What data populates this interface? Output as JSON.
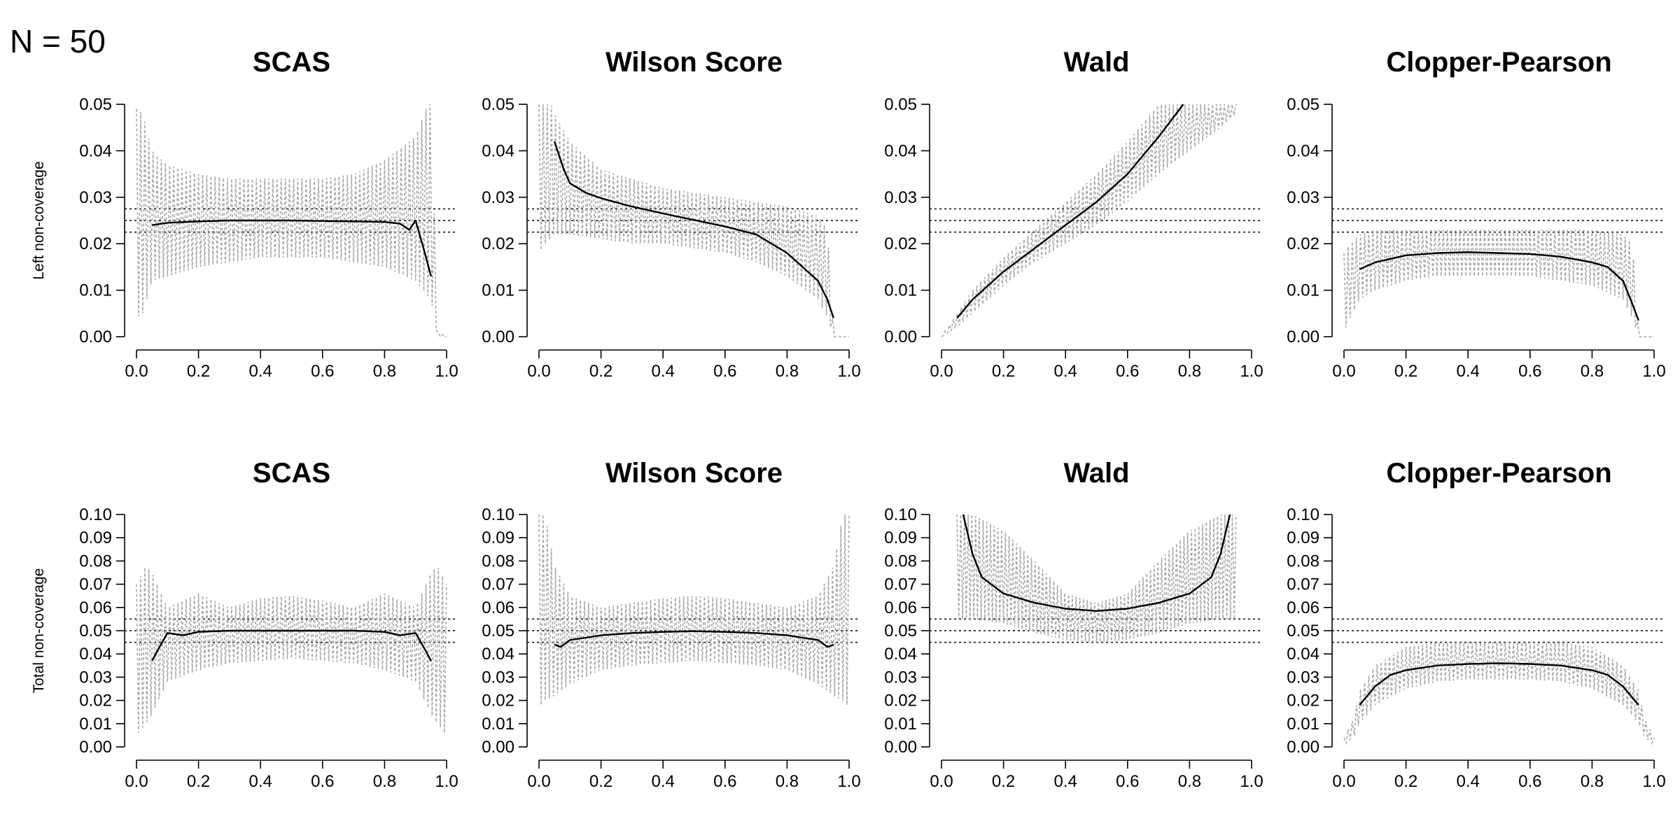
{
  "figure_label": "N = 50",
  "chart_data": [
    {
      "type": "line",
      "title": "SCAS",
      "ylabel": "Left non-coverage",
      "xlim": [
        0,
        1
      ],
      "ylim": [
        0,
        0.05
      ],
      "xticks": [
        "0.0",
        "0.2",
        "0.4",
        "0.6",
        "0.8",
        "1.0"
      ],
      "yticks": [
        "0.00",
        "0.01",
        "0.02",
        "0.03",
        "0.04",
        "0.05"
      ],
      "reference_lines": [
        0.0225,
        0.025,
        0.0275
      ],
      "series": [
        {
          "style": "solid-black",
          "x": [
            0.05,
            0.1,
            0.2,
            0.3,
            0.4,
            0.5,
            0.6,
            0.7,
            0.8,
            0.85,
            0.88,
            0.9,
            0.93,
            0.95
          ],
          "y": [
            0.024,
            0.0245,
            0.0248,
            0.025,
            0.025,
            0.025,
            0.0249,
            0.0248,
            0.0247,
            0.0243,
            0.023,
            0.025,
            0.018,
            0.013
          ]
        },
        {
          "style": "dotted-gray",
          "x": [
            0.0,
            0.02,
            0.05,
            0.1,
            0.2,
            0.3,
            0.4,
            0.5,
            0.6,
            0.7,
            0.8,
            0.9,
            0.95,
            0.97,
            1.0
          ],
          "upper": [
            0.049,
            0.048,
            0.04,
            0.037,
            0.035,
            0.034,
            0.034,
            0.034,
            0.034,
            0.035,
            0.038,
            0.043,
            0.052,
            0.001,
            0.0
          ],
          "lower": [
            0.004,
            0.005,
            0.012,
            0.013,
            0.015,
            0.016,
            0.017,
            0.017,
            0.017,
            0.016,
            0.015,
            0.012,
            0.008,
            0.0,
            0.0
          ]
        }
      ]
    },
    {
      "type": "line",
      "title": "Wilson Score",
      "ylabel": "",
      "xlim": [
        0,
        1
      ],
      "ylim": [
        0,
        0.05
      ],
      "xticks": [
        "0.0",
        "0.2",
        "0.4",
        "0.6",
        "0.8",
        "1.0"
      ],
      "yticks": [
        "0.00",
        "0.01",
        "0.02",
        "0.03",
        "0.04",
        "0.05"
      ],
      "reference_lines": [
        0.0225,
        0.025,
        0.0275
      ],
      "series": [
        {
          "style": "solid-black",
          "x": [
            0.05,
            0.08,
            0.1,
            0.15,
            0.2,
            0.3,
            0.4,
            0.5,
            0.6,
            0.7,
            0.8,
            0.85,
            0.9,
            0.93,
            0.95
          ],
          "y": [
            0.042,
            0.036,
            0.033,
            0.031,
            0.0298,
            0.028,
            0.0265,
            0.0251,
            0.0237,
            0.022,
            0.018,
            0.015,
            0.012,
            0.008,
            0.004
          ]
        },
        {
          "style": "dotted-gray",
          "x": [
            0.0,
            0.02,
            0.05,
            0.1,
            0.2,
            0.3,
            0.4,
            0.5,
            0.6,
            0.7,
            0.8,
            0.9,
            0.93,
            0.95,
            1.0
          ],
          "upper": [
            0.055,
            0.053,
            0.048,
            0.042,
            0.036,
            0.034,
            0.032,
            0.031,
            0.03,
            0.029,
            0.028,
            0.026,
            0.023,
            0.0,
            0.0
          ],
          "lower": [
            0.018,
            0.02,
            0.022,
            0.022,
            0.021,
            0.02,
            0.02,
            0.019,
            0.018,
            0.016,
            0.013,
            0.008,
            0.004,
            0.0,
            0.0
          ]
        }
      ]
    },
    {
      "type": "line",
      "title": "Wald",
      "ylabel": "",
      "xlim": [
        0,
        1
      ],
      "ylim": [
        0,
        0.05
      ],
      "xticks": [
        "0.0",
        "0.2",
        "0.4",
        "0.6",
        "0.8",
        "1.0"
      ],
      "yticks": [
        "0.00",
        "0.01",
        "0.02",
        "0.03",
        "0.04",
        "0.05"
      ],
      "reference_lines": [
        0.0225,
        0.025,
        0.0275
      ],
      "series": [
        {
          "style": "solid-black",
          "x": [
            0.05,
            0.1,
            0.2,
            0.3,
            0.4,
            0.5,
            0.6,
            0.7,
            0.78
          ],
          "y": [
            0.004,
            0.008,
            0.014,
            0.019,
            0.024,
            0.029,
            0.035,
            0.043,
            0.052
          ]
        },
        {
          "style": "dotted-gray",
          "x": [
            0.0,
            0.05,
            0.1,
            0.2,
            0.3,
            0.4,
            0.5,
            0.6,
            0.7,
            0.8,
            0.9,
            0.95
          ],
          "upper": [
            0.0,
            0.005,
            0.01,
            0.017,
            0.023,
            0.029,
            0.035,
            0.042,
            0.05,
            0.052,
            0.052,
            0.052
          ],
          "lower": [
            0.0,
            0.002,
            0.005,
            0.011,
            0.016,
            0.02,
            0.024,
            0.029,
            0.035,
            0.04,
            0.045,
            0.048
          ]
        }
      ]
    },
    {
      "type": "line",
      "title": "Clopper-Pearson",
      "ylabel": "",
      "xlim": [
        0,
        1
      ],
      "ylim": [
        0,
        0.05
      ],
      "xticks": [
        "0.0",
        "0.2",
        "0.4",
        "0.6",
        "0.8",
        "1.0"
      ],
      "yticks": [
        "0.00",
        "0.01",
        "0.02",
        "0.03",
        "0.04",
        "0.05"
      ],
      "reference_lines": [
        0.0225,
        0.025,
        0.0275
      ],
      "series": [
        {
          "style": "solid-black",
          "x": [
            0.05,
            0.1,
            0.2,
            0.3,
            0.4,
            0.5,
            0.6,
            0.7,
            0.8,
            0.85,
            0.9,
            0.93,
            0.95
          ],
          "y": [
            0.0145,
            0.016,
            0.0175,
            0.018,
            0.0182,
            0.018,
            0.0178,
            0.0172,
            0.016,
            0.015,
            0.012,
            0.007,
            0.0035
          ]
        },
        {
          "style": "dotted-gray",
          "x": [
            0.0,
            0.02,
            0.05,
            0.1,
            0.2,
            0.3,
            0.4,
            0.5,
            0.6,
            0.7,
            0.8,
            0.9,
            0.93,
            0.95,
            1.0
          ],
          "upper": [
            0.018,
            0.02,
            0.022,
            0.023,
            0.023,
            0.023,
            0.023,
            0.023,
            0.023,
            0.023,
            0.023,
            0.022,
            0.02,
            0.0,
            0.0
          ],
          "lower": [
            0.001,
            0.004,
            0.008,
            0.01,
            0.012,
            0.013,
            0.013,
            0.013,
            0.013,
            0.012,
            0.011,
            0.008,
            0.004,
            0.0,
            0.0
          ]
        }
      ]
    },
    {
      "type": "line",
      "title": "SCAS",
      "ylabel": "Total non-coverage",
      "xlim": [
        0,
        1
      ],
      "ylim": [
        0,
        0.1
      ],
      "xticks": [
        "0.0",
        "0.2",
        "0.4",
        "0.6",
        "0.8",
        "1.0"
      ],
      "yticks": [
        "0.00",
        "0.01",
        "0.02",
        "0.03",
        "0.04",
        "0.05",
        "0.06",
        "0.07",
        "0.08",
        "0.09",
        "0.10"
      ],
      "reference_lines": [
        0.045,
        0.05,
        0.055
      ],
      "series": [
        {
          "style": "solid-black",
          "x": [
            0.05,
            0.07,
            0.1,
            0.15,
            0.2,
            0.3,
            0.4,
            0.5,
            0.6,
            0.7,
            0.8,
            0.85,
            0.9,
            0.93,
            0.95
          ],
          "y": [
            0.037,
            0.042,
            0.049,
            0.048,
            0.0495,
            0.05,
            0.05,
            0.05,
            0.05,
            0.05,
            0.0495,
            0.048,
            0.049,
            0.042,
            0.037
          ]
        },
        {
          "style": "dotted-gray",
          "x": [
            0.0,
            0.03,
            0.05,
            0.1,
            0.2,
            0.3,
            0.4,
            0.5,
            0.6,
            0.7,
            0.8,
            0.9,
            0.95,
            0.97,
            1.0
          ],
          "upper": [
            0.07,
            0.078,
            0.075,
            0.06,
            0.066,
            0.06,
            0.064,
            0.065,
            0.063,
            0.06,
            0.066,
            0.06,
            0.075,
            0.078,
            0.07
          ],
          "lower": [
            0.005,
            0.01,
            0.014,
            0.028,
            0.033,
            0.036,
            0.037,
            0.038,
            0.037,
            0.036,
            0.033,
            0.028,
            0.014,
            0.01,
            0.005
          ]
        }
      ]
    },
    {
      "type": "line",
      "title": "Wilson Score",
      "ylabel": "",
      "xlim": [
        0,
        1
      ],
      "ylim": [
        0,
        0.1
      ],
      "xticks": [
        "0.0",
        "0.2",
        "0.4",
        "0.6",
        "0.8",
        "1.0"
      ],
      "yticks": [
        "0.00",
        "0.01",
        "0.02",
        "0.03",
        "0.04",
        "0.05",
        "0.06",
        "0.07",
        "0.08",
        "0.09",
        "0.10"
      ],
      "reference_lines": [
        0.045,
        0.05,
        0.055
      ],
      "series": [
        {
          "style": "solid-black",
          "x": [
            0.05,
            0.07,
            0.1,
            0.15,
            0.2,
            0.3,
            0.4,
            0.5,
            0.6,
            0.7,
            0.8,
            0.85,
            0.9,
            0.93,
            0.95
          ],
          "y": [
            0.044,
            0.043,
            0.046,
            0.047,
            0.048,
            0.049,
            0.0495,
            0.0498,
            0.0495,
            0.049,
            0.048,
            0.047,
            0.046,
            0.043,
            0.044
          ]
        },
        {
          "style": "dotted-gray",
          "x": [
            0.0,
            0.02,
            0.05,
            0.1,
            0.2,
            0.3,
            0.4,
            0.5,
            0.6,
            0.7,
            0.8,
            0.9,
            0.95,
            0.98,
            1.0
          ],
          "upper": [
            0.1,
            0.1,
            0.078,
            0.065,
            0.06,
            0.062,
            0.064,
            0.065,
            0.064,
            0.062,
            0.06,
            0.065,
            0.078,
            0.1,
            0.1
          ],
          "lower": [
            0.017,
            0.02,
            0.022,
            0.027,
            0.033,
            0.035,
            0.036,
            0.037,
            0.036,
            0.035,
            0.033,
            0.027,
            0.022,
            0.02,
            0.017
          ]
        }
      ]
    },
    {
      "type": "line",
      "title": "Wald",
      "ylabel": "",
      "xlim": [
        0,
        1
      ],
      "ylim": [
        0,
        0.1
      ],
      "xticks": [
        "0.0",
        "0.2",
        "0.4",
        "0.6",
        "0.8",
        "1.0"
      ],
      "yticks": [
        "0.00",
        "0.01",
        "0.02",
        "0.03",
        "0.04",
        "0.05",
        "0.06",
        "0.07",
        "0.08",
        "0.09",
        "0.10"
      ],
      "reference_lines": [
        0.045,
        0.05,
        0.055
      ],
      "series": [
        {
          "style": "solid-black",
          "x": [
            0.07,
            0.1,
            0.13,
            0.2,
            0.3,
            0.4,
            0.5,
            0.6,
            0.7,
            0.8,
            0.87,
            0.9,
            0.93
          ],
          "y": [
            0.1,
            0.083,
            0.073,
            0.066,
            0.062,
            0.0595,
            0.0585,
            0.0595,
            0.062,
            0.066,
            0.073,
            0.083,
            0.1
          ]
        },
        {
          "style": "dotted-gray",
          "x": [
            0.05,
            0.1,
            0.2,
            0.3,
            0.4,
            0.5,
            0.6,
            0.7,
            0.8,
            0.9,
            0.95
          ],
          "upper": [
            0.1,
            0.1,
            0.093,
            0.08,
            0.066,
            0.062,
            0.066,
            0.08,
            0.093,
            0.1,
            0.1
          ],
          "lower": [
            0.055,
            0.055,
            0.053,
            0.049,
            0.046,
            0.045,
            0.046,
            0.049,
            0.053,
            0.055,
            0.055
          ]
        }
      ]
    },
    {
      "type": "line",
      "title": "Clopper-Pearson",
      "ylabel": "",
      "xlim": [
        0,
        1
      ],
      "ylim": [
        0,
        0.1
      ],
      "xticks": [
        "0.0",
        "0.2",
        "0.4",
        "0.6",
        "0.8",
        "1.0"
      ],
      "yticks": [
        "0.00",
        "0.01",
        "0.02",
        "0.03",
        "0.04",
        "0.05",
        "0.06",
        "0.07",
        "0.08",
        "0.09",
        "0.10"
      ],
      "reference_lines": [
        0.045,
        0.05,
        0.055
      ],
      "series": [
        {
          "style": "solid-black",
          "x": [
            0.05,
            0.1,
            0.15,
            0.2,
            0.3,
            0.4,
            0.5,
            0.6,
            0.7,
            0.8,
            0.85,
            0.9,
            0.95
          ],
          "y": [
            0.018,
            0.026,
            0.031,
            0.033,
            0.035,
            0.0357,
            0.036,
            0.0357,
            0.035,
            0.033,
            0.031,
            0.026,
            0.018
          ]
        },
        {
          "style": "dotted-gray",
          "x": [
            0.0,
            0.03,
            0.05,
            0.1,
            0.2,
            0.3,
            0.4,
            0.5,
            0.6,
            0.7,
            0.8,
            0.9,
            0.95,
            0.97,
            1.0
          ],
          "upper": [
            0.004,
            0.012,
            0.024,
            0.035,
            0.043,
            0.045,
            0.045,
            0.045,
            0.045,
            0.045,
            0.043,
            0.035,
            0.024,
            0.012,
            0.004
          ],
          "lower": [
            0.001,
            0.004,
            0.01,
            0.018,
            0.025,
            0.028,
            0.029,
            0.029,
            0.029,
            0.028,
            0.025,
            0.018,
            0.01,
            0.004,
            0.001
          ]
        }
      ]
    }
  ]
}
